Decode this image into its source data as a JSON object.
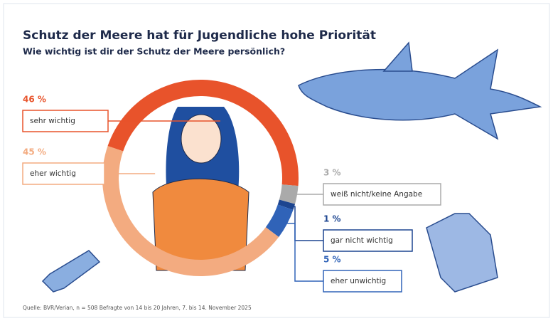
{
  "chart_data": {
    "type": "donut",
    "title": "Schutz der Meere hat für Jugendliche hohe Priorität",
    "subtitle": "Wie wichtig ist dir der Schutz der Meere persönlich?",
    "source": "Quelle: BVR/Verian, n = 508 Befragte von 14 bis 20 Jahren, 7. bis 14. November 2025",
    "categories": [
      "sehr wichtig",
      "weiß nicht/keine Angabe",
      "gar nicht wichtig",
      "eher unwichtig",
      "eher wichtig"
    ],
    "values": [
      46,
      3,
      1,
      5,
      45
    ],
    "value_labels": [
      "46 %",
      "3 %",
      "1 %",
      "5 %",
      "45 %"
    ],
    "colors": [
      "#e8532b",
      "#aaaaaa",
      "#1d4590",
      "#3063b8",
      "#f3ab80"
    ]
  }
}
